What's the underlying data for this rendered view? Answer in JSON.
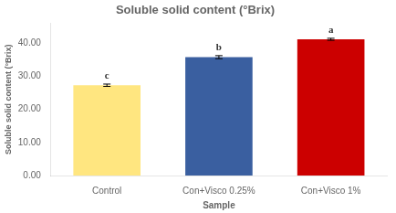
{
  "chart_data": {
    "type": "bar",
    "title": "Soluble solid content (°Brix)",
    "xlabel": "Sample",
    "ylabel": "Soluble solid content (°Brix)",
    "categories": [
      "Control",
      "Con+Visco 0.25%",
      "Con+Visco 1%"
    ],
    "values": [
      27.3,
      35.8,
      41.2
    ],
    "errors": [
      0.35,
      0.45,
      0.3
    ],
    "annotations": [
      "c",
      "b",
      "a"
    ],
    "colors": [
      "#FFE680",
      "#3A5FA0",
      "#CC0000"
    ],
    "ylim": [
      0,
      46
    ],
    "yticks": [
      {
        "value": 0,
        "label": "0.00"
      },
      {
        "value": 10,
        "label": "10.00"
      },
      {
        "value": 20,
        "label": "20.00"
      },
      {
        "value": 30,
        "label": "30.00"
      },
      {
        "value": 40,
        "label": "40.00"
      }
    ],
    "grid": false
  }
}
